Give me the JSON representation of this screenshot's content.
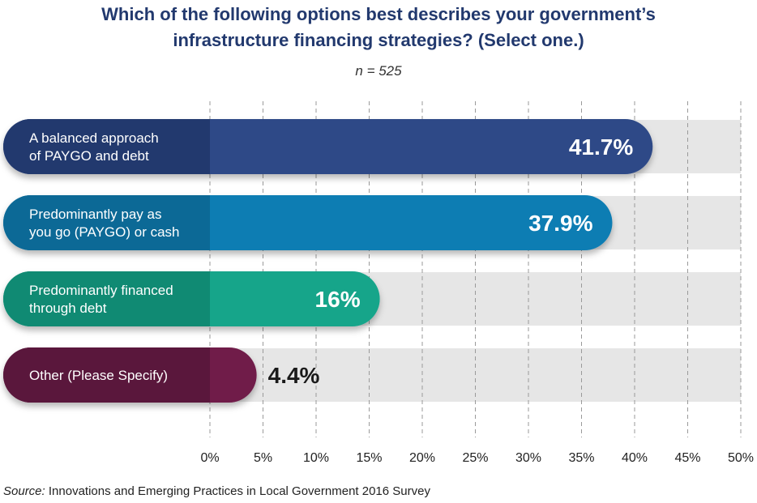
{
  "chart_data": {
    "type": "bar",
    "orientation": "horizontal",
    "title_lines": [
      "Which of the following options best describes your government’s",
      "infrastructure financing strategies? (Select one.)"
    ],
    "subtitle": "n = 525",
    "categories": [
      "A balanced approach of PAYGO and debt",
      "Predominantly pay as you go (PAYGO) or cash",
      "Predominantly financed through debt",
      "Other (Please Specify)"
    ],
    "category_label_lines": [
      [
        "A balanced approach",
        "of PAYGO and debt"
      ],
      [
        "Predominantly pay as",
        "you go (PAYGO) or cash"
      ],
      [
        "Predominantly financed",
        "through debt"
      ],
      [
        "Other (Please Specify)"
      ]
    ],
    "values": [
      41.7,
      37.9,
      16,
      4.4
    ],
    "value_labels": [
      "41.7%",
      "37.9%",
      "16%",
      "4.4%"
    ],
    "xlim": [
      0,
      50
    ],
    "x_ticks": [
      0,
      5,
      10,
      15,
      20,
      25,
      30,
      35,
      40,
      45,
      50
    ],
    "x_tick_labels": [
      "0%",
      "5%",
      "10%",
      "15%",
      "20%",
      "25%",
      "30%",
      "35%",
      "40%",
      "45%",
      "50%"
    ],
    "grid": true,
    "colors": {
      "bars": [
        "#2e4a87",
        "#0f7db3",
        "#14a58a",
        "#6f1d49"
      ],
      "label_areas": [
        "#22396e",
        "#0c6996",
        "#108a73",
        "#5a173c"
      ],
      "track": "#e6e6e6",
      "title": "#22396e"
    }
  },
  "source": {
    "label": "Source:",
    "text": "Innovations and Emerging Practices in Local Government 2016 Survey"
  }
}
